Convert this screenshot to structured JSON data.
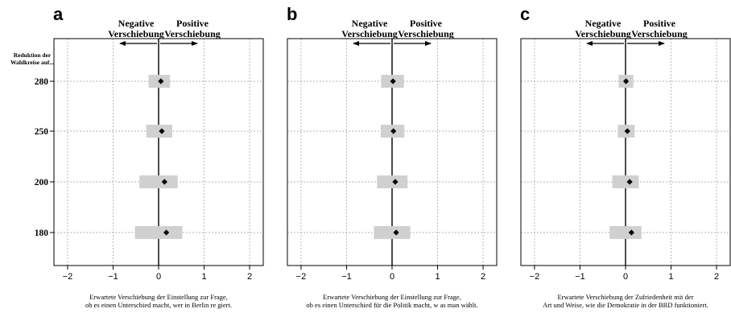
{
  "row_header": [
    "Reduktion der",
    "Wahlkreise auf..."
  ],
  "direction_labels": {
    "negative": [
      "Negative",
      "Verschiebung"
    ],
    "positive": [
      "Positive",
      "Verschiebung"
    ]
  },
  "colors": {
    "ci_band": "#d0d0d0",
    "point": "#000000",
    "grid": "#9a9a9a"
  },
  "chart_data": [
    {
      "type": "scatter",
      "panel_label": "a",
      "categories": [
        "280",
        "250",
        "200",
        "180"
      ],
      "values": [
        0.05,
        0.07,
        0.13,
        0.17
      ],
      "ci": [
        [
          -0.22,
          0.25
        ],
        [
          -0.27,
          0.3
        ],
        [
          -0.42,
          0.42
        ],
        [
          -0.52,
          0.52
        ]
      ],
      "xlim": [
        -2.3,
        2.3
      ],
      "xticks": [
        "−2",
        "−1",
        "0",
        "1",
        "2"
      ],
      "xlabel": [
        "Erwartete Verschiebung der Einstellung zur Frage,",
        "ob es einen Unterschied macht, wer in Berlin re giert."
      ],
      "grid": true
    },
    {
      "type": "scatter",
      "panel_label": "b",
      "categories": [
        "280",
        "250",
        "200",
        "180"
      ],
      "values": [
        0.02,
        0.03,
        0.07,
        0.09
      ],
      "ci": [
        [
          -0.24,
          0.26
        ],
        [
          -0.25,
          0.27
        ],
        [
          -0.33,
          0.34
        ],
        [
          -0.4,
          0.4
        ]
      ],
      "xlim": [
        -2.3,
        2.3
      ],
      "xticks": [
        "−2",
        "−1",
        "0",
        "1",
        "2"
      ],
      "xlabel": [
        "Erwartete Verschiebung der Einstellung zur Frage,",
        "ob es einen Unterschied für die Politik macht, w as man wählt."
      ],
      "grid": true
    },
    {
      "type": "scatter",
      "panel_label": "c",
      "categories": [
        "280",
        "250",
        "200",
        "180"
      ],
      "values": [
        0.01,
        0.04,
        0.09,
        0.13
      ],
      "ci": [
        [
          -0.15,
          0.17
        ],
        [
          -0.17,
          0.2
        ],
        [
          -0.29,
          0.29
        ],
        [
          -0.35,
          0.35
        ]
      ],
      "xlim": [
        -2.3,
        2.3
      ],
      "xticks": [
        "−2",
        "−1",
        "0",
        "1",
        "2"
      ],
      "xlabel": [
        "Erwartete Verschiebung der Zufriedenheit mit der",
        "Art und Weise, wie die Demokratie in der BRD funktioniert."
      ],
      "grid": true
    }
  ]
}
